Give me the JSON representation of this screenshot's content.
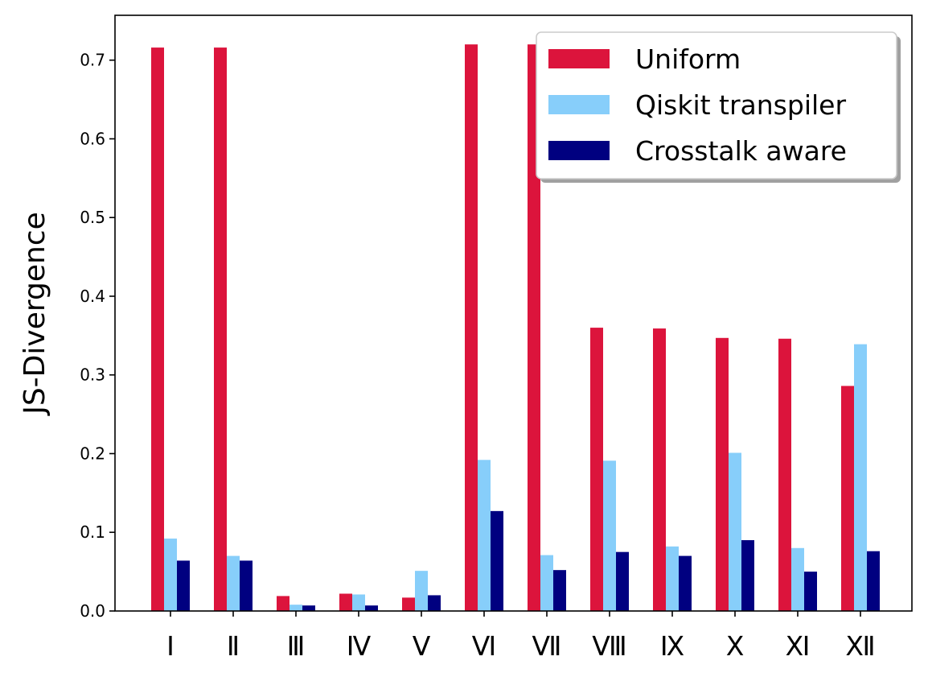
{
  "chart_data": {
    "type": "bar",
    "title": "",
    "xlabel": "",
    "ylabel": "JS-Divergence",
    "ylim": [
      0,
      0.757
    ],
    "yticks": [
      0.0,
      0.1,
      0.2,
      0.3,
      0.4,
      0.5,
      0.6,
      0.7
    ],
    "ytick_labels": [
      "0.0",
      "0.1",
      "0.2",
      "0.3",
      "0.4",
      "0.5",
      "0.6",
      "0.7"
    ],
    "categories": [
      "I",
      "II",
      "III",
      "IV",
      "V",
      "VI",
      "VII",
      "VIII",
      "IX",
      "X",
      "XI",
      "XII"
    ],
    "category_labels": [
      "Ⅰ",
      "Ⅱ",
      "Ⅲ",
      "Ⅳ",
      "Ⅴ",
      "Ⅵ",
      "Ⅶ",
      "Ⅷ",
      "Ⅸ",
      "Ⅹ",
      "Ⅺ",
      "Ⅻ"
    ],
    "legend_position": "upper-right",
    "grid": false,
    "series": [
      {
        "name": "Uniform",
        "color": "#DC143C",
        "values": [
          0.716,
          0.716,
          0.019,
          0.022,
          0.017,
          0.72,
          0.72,
          0.36,
          0.359,
          0.347,
          0.346,
          0.286
        ]
      },
      {
        "name": "Qiskit transpiler",
        "color": "#87CEFA",
        "values": [
          0.092,
          0.07,
          0.008,
          0.021,
          0.051,
          0.192,
          0.071,
          0.191,
          0.082,
          0.201,
          0.08,
          0.339
        ]
      },
      {
        "name": "Crosstalk aware",
        "color": "#000080",
        "values": [
          0.064,
          0.064,
          0.007,
          0.007,
          0.02,
          0.127,
          0.052,
          0.075,
          0.07,
          0.09,
          0.05,
          0.076
        ]
      }
    ]
  }
}
